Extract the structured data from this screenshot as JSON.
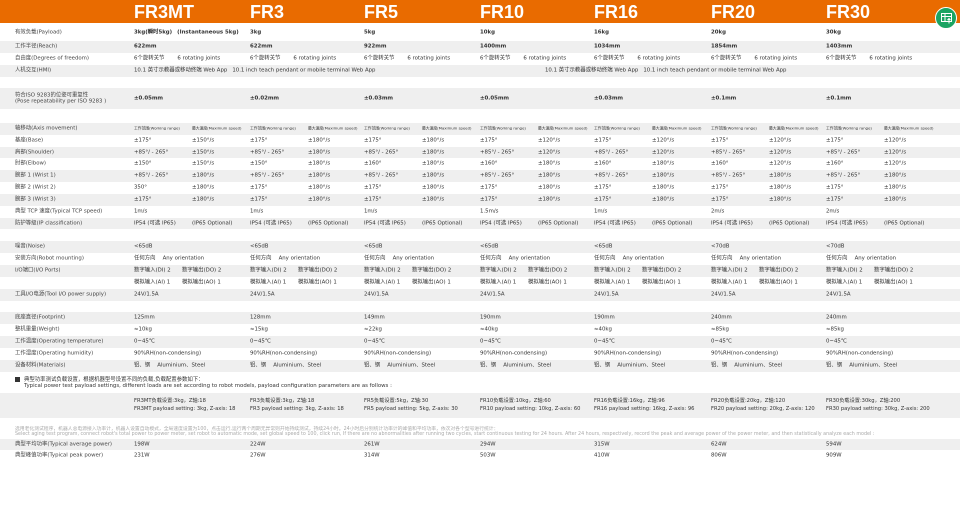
{
  "header": {
    "models": [
      "FR3MT",
      "FR3",
      "FR5",
      "FR10",
      "FR16",
      "FR20",
      "FR30"
    ],
    "brand_color": "#e96b00",
    "export_icon": "table-export-icon",
    "export_color": "#1ba463"
  },
  "rows": [
    {
      "id": "payload",
      "label": "有效负载(Payload)",
      "cells": [
        [
          "3kg(瞬时5kg)",
          "(Instantaneous 5kg)"
        ],
        [
          "3kg"
        ],
        [
          "5kg"
        ],
        [
          "10kg"
        ],
        [
          "16kg"
        ],
        [
          "20kg"
        ],
        [
          "30kg"
        ]
      ]
    },
    {
      "id": "reach",
      "label": "工作半径(Reach)",
      "cells": [
        [
          "622mm"
        ],
        [
          "622mm"
        ],
        [
          "922mm"
        ],
        [
          "1400mm"
        ],
        [
          "1034mm"
        ],
        [
          "1854mm"
        ],
        [
          "1403mm"
        ]
      ]
    },
    {
      "id": "dof",
      "label": "自由度(Degrees of freedom)",
      "cells": [
        [
          "6个旋转关节",
          "6 rotating joints"
        ],
        [
          "6个旋转关节",
          "6 rotating joints"
        ],
        [
          "6个旋转关节",
          "6 rotating joints"
        ],
        [
          "6个旋转关节",
          "6 rotating joints"
        ],
        [
          "6个旋转关节",
          "6 rotating joints"
        ],
        [
          "6个旋转关节",
          "6 rotating joints"
        ],
        [
          "6个旋转关节",
          "6 rotating joints"
        ]
      ]
    },
    {
      "id": "hmi",
      "label": "人机交互(HMI)",
      "cells": [
        [
          "10.1 英寸示教器或移动终端 Web App",
          "10.1 inch teach pendant or mobile terminal Web App"
        ],
        [
          "10.1 英寸示教器或移动终端 Web App",
          "10.1 inch teach pendant or mobile terminal Web App"
        ]
      ]
    },
    {
      "id": "blank1",
      "label": "",
      "cells": []
    },
    {
      "id": "iso",
      "label": "符合ISO 9283的位姿可重复性\n(Pose repeatability per ISO 9283 )",
      "cells": [
        [
          "±0.05mm"
        ],
        [
          "±0.02mm"
        ],
        [
          "±0.03mm"
        ],
        [
          "±0.05mm"
        ],
        [
          "±0.03mm"
        ],
        [
          "±0.1mm"
        ],
        [
          "±0.1mm"
        ]
      ]
    },
    {
      "id": "gap1",
      "label": "",
      "cells": []
    },
    {
      "id": "axis",
      "label": "轴移动(Axis movement)",
      "cells": [
        [
          "工作范围(Working range)",
          "最大速度(Maximum speed)"
        ],
        [
          "工作范围(Working range)",
          "最大速度(Maximum speed)"
        ],
        [
          "工作范围(Working range)",
          "最大速度(Maximum speed)"
        ],
        [
          "工作范围(Working range)",
          "最大速度(Maximum speed)"
        ],
        [
          "工作范围(Working range)",
          "最大速度(Maximum speed)"
        ],
        [
          "工作范围(Working range)",
          "最大速度(Maximum speed)"
        ],
        [
          "工作范围(Working range)",
          "最大速度(Maximum speed)"
        ]
      ]
    },
    {
      "id": "base",
      "label": "基座(Base)",
      "cells": [
        [
          "±175°",
          "±150°/s"
        ],
        [
          "±175°",
          "±180°/s"
        ],
        [
          "±175°",
          "±180°/s"
        ],
        [
          "±175°",
          "±120°/s"
        ],
        [
          "±175°",
          "±120°/s"
        ],
        [
          "±175°",
          "±120°/s"
        ],
        [
          "±175°",
          "±120°/s"
        ]
      ]
    },
    {
      "id": "shoulder",
      "label": "肩部(Shoulder)",
      "cells": [
        [
          "+85°/ - 265°",
          "±150°/s"
        ],
        [
          "+85°/ - 265°",
          "±180°/s"
        ],
        [
          "+85°/ - 265°",
          "±180°/s"
        ],
        [
          "+85°/ - 265°",
          "±120°/s"
        ],
        [
          "+85°/ - 265°",
          "±120°/s"
        ],
        [
          "+85°/ - 265°",
          "±120°/s"
        ],
        [
          "+85°/ - 265°",
          "±120°/s"
        ]
      ]
    },
    {
      "id": "elbow",
      "label": "肘部(Elbow)",
      "cells": [
        [
          "±150°",
          "±150°/s"
        ],
        [
          "±150°",
          "±180°/s"
        ],
        [
          "±160°",
          "±180°/s"
        ],
        [
          "±160°",
          "±180°/s"
        ],
        [
          "±160°",
          "±180°/s"
        ],
        [
          "±160°",
          "±120°/s"
        ],
        [
          "±160°",
          "±120°/s"
        ]
      ]
    },
    {
      "id": "wrist1",
      "label": "腕部 1 (Wrist 1)",
      "cells": [
        [
          "+85°/ - 265°",
          "±180°/s"
        ],
        [
          "+85°/ - 265°",
          "±180°/s"
        ],
        [
          "+85°/ - 265°",
          "±180°/s"
        ],
        [
          "+85°/ - 265°",
          "±180°/s"
        ],
        [
          "+85°/ - 265°",
          "±180°/s"
        ],
        [
          "+85°/ - 265°",
          "±180°/s"
        ],
        [
          "+85°/ - 265°",
          "±180°/s"
        ]
      ]
    },
    {
      "id": "wrist2",
      "label": "腕部 2 (Wrist 2)",
      "cells": [
        [
          "350°",
          "±180°/s"
        ],
        [
          "±175°",
          "±180°/s"
        ],
        [
          "±175°",
          "±180°/s"
        ],
        [
          "±175°",
          "±180°/s"
        ],
        [
          "±175°",
          "±180°/s"
        ],
        [
          "±175°",
          "±180°/s"
        ],
        [
          "±175°",
          "±180°/s"
        ]
      ]
    },
    {
      "id": "wrist3",
      "label": "腕部 3 (Wrist 3)",
      "cells": [
        [
          "±175°",
          "±180°/s"
        ],
        [
          "±175°",
          "±180°/s"
        ],
        [
          "±175°",
          "±180°/s"
        ],
        [
          "±175°",
          "±180°/s"
        ],
        [
          "±175°",
          "±180°/s"
        ],
        [
          "±175°",
          "±180°/s"
        ],
        [
          "±175°",
          "±180°/s"
        ]
      ]
    },
    {
      "id": "tcp",
      "label": "典型 TCP 速度(Typical TCP speed)",
      "cells": [
        [
          "1m/s"
        ],
        [
          "1m/s"
        ],
        [
          "1m/s"
        ],
        [
          "1.5m/s"
        ],
        [
          "1m/s"
        ],
        [
          "2m/s"
        ],
        [
          "2m/s"
        ]
      ]
    },
    {
      "id": "ip",
      "label": "防护等级(IP classification)",
      "cells": [
        [
          "IP54 (可选 IP65)",
          "(IP65 Optional)"
        ],
        [
          "IP54 (可选 IP65)",
          "(IP65 Optional)"
        ],
        [
          "IP54 (可选 IP65)",
          "(IP65 Optional)"
        ],
        [
          "IP54 (可选 IP65)",
          "(IP65 Optional)"
        ],
        [
          "IP54 (可选 IP65)",
          "(IP65 Optional)"
        ],
        [
          "IP54 (可选 IP65)",
          "(IP65 Optional)"
        ],
        [
          "IP54 (可选 IP65)",
          "(IP65 Optional)"
        ]
      ]
    },
    {
      "id": "gap2",
      "label": "",
      "cells": []
    },
    {
      "id": "noise",
      "label": "噪音(Noise)",
      "cells": [
        [
          "<65dB"
        ],
        [
          "<65dB"
        ],
        [
          "<65dB"
        ],
        [
          "<65dB"
        ],
        [
          "<65dB"
        ],
        [
          "<70dB"
        ],
        [
          "<70dB"
        ]
      ]
    },
    {
      "id": "mount",
      "label": "安装方向(Robot mounting)",
      "cells": [
        [
          "任何方向",
          "Any orientation"
        ],
        [
          "任何方向",
          "Any orientation"
        ],
        [
          "任何方向",
          "Any orientation"
        ],
        [
          "任何方向",
          "Any orientation"
        ],
        [
          "任何方向",
          "Any orientation"
        ],
        [
          "任何方向",
          "Any orientation"
        ],
        [
          "任何方向",
          "Any orientation"
        ]
      ]
    },
    {
      "id": "io1",
      "label": "I/O端口(I/O Ports)",
      "cells": [
        [
          "数字输入(DI) 2",
          "数字输出(DO) 2"
        ],
        [
          "数字输入(DI) 2",
          "数字输出(DO) 2"
        ],
        [
          "数字输入(DI) 2",
          "数字输出(DO) 2"
        ],
        [
          "数字输入(DI) 2",
          "数字输出(DO) 2"
        ],
        [
          "数字输入(DI) 2",
          "数字输出(DO) 2"
        ],
        [
          "数字输入(DI) 2",
          "数字输出(DO) 2"
        ],
        [
          "数字输入(DI) 2",
          "数字输出(DO) 2"
        ]
      ]
    },
    {
      "id": "io2",
      "label": "",
      "cells": [
        [
          "模拟输入(AI) 1",
          "模拟输出(AO) 1"
        ],
        [
          "模拟输入(AI) 1",
          "模拟输出(AO) 1"
        ],
        [
          "模拟输入(AI) 1",
          "模拟输出(AO) 1"
        ],
        [
          "模拟输入(AI) 1",
          "模拟输出(AO) 1"
        ],
        [
          "模拟输入(AI) 1",
          "模拟输出(AO) 1"
        ],
        [
          "模拟输入(AI) 1",
          "模拟输出(AO) 1"
        ],
        [
          "模拟输入(AI) 1",
          "模拟输出(AO) 1"
        ]
      ]
    },
    {
      "id": "toolio",
      "label": "工具I/O电源(Tool I/O power supply)",
      "cells": [
        [
          "24V/1.5A"
        ],
        [
          "24V/1.5A"
        ],
        [
          "24V/1.5A"
        ],
        [
          "24V/1.5A"
        ],
        [
          "24V/1.5A"
        ],
        [
          "24V/1.5A"
        ],
        [
          "24V/1.5A"
        ]
      ]
    },
    {
      "id": "blank2",
      "label": "",
      "cells": []
    },
    {
      "id": "footprint",
      "label": "底座直径(Footprint)",
      "cells": [
        [
          "125mm"
        ],
        [
          "128mm"
        ],
        [
          "149mm"
        ],
        [
          "190mm"
        ],
        [
          "190mm"
        ],
        [
          "240mm"
        ],
        [
          "240mm"
        ]
      ]
    },
    {
      "id": "weight",
      "label": "整机重量(Weight)",
      "cells": [
        [
          "≈10kg"
        ],
        [
          "≈15kg"
        ],
        [
          "≈22kg"
        ],
        [
          "≈40kg"
        ],
        [
          "≈40kg"
        ],
        [
          "≈85kg"
        ],
        [
          "≈85kg"
        ]
      ]
    },
    {
      "id": "temp",
      "label": "工作温度(Operating temperature)",
      "cells": [
        [
          "0~45℃"
        ],
        [
          "0~45℃"
        ],
        [
          "0~45℃"
        ],
        [
          "0~45℃"
        ],
        [
          "0~45℃"
        ],
        [
          "0~45℃"
        ],
        [
          "0~45℃"
        ]
      ]
    },
    {
      "id": "humidity",
      "label": "工作湿度(Operating humidity)",
      "cells": [
        [
          "90%RH(non-condensing)"
        ],
        [
          "90%RH(non-condensing)"
        ],
        [
          "90%RH(non-condensing)"
        ],
        [
          "90%RH(non-condensing)"
        ],
        [
          "90%RH(non-condensing)"
        ],
        [
          "90%RH(non-condensing)"
        ],
        [
          "90%RH(non-condensing)"
        ]
      ]
    },
    {
      "id": "materials",
      "label": "设备材料(Materials)",
      "cells": [
        [
          "铝、钢",
          "Aluminium、Steel"
        ],
        [
          "铝、钢",
          "Aluminium、Steel"
        ],
        [
          "铝、钢",
          "Aluminium、Steel"
        ],
        [
          "铝、钢",
          "Aluminium、Steel"
        ],
        [
          "铝、钢",
          "Aluminium、Steel"
        ],
        [
          "铝、钢",
          "Aluminium、Steel"
        ],
        [
          "铝、钢",
          "Aluminium、Steel"
        ]
      ]
    }
  ],
  "power_note": {
    "zh": "典型功率测试负载设置，根据机器型号设置不同的负载,负载配置参数如下：",
    "en": "Typical power test payload settings, different loads are set according to robot models, payload configuration parameters are as follows :"
  },
  "payload_settings": [
    {
      "zh": "FR3MT负载设置:3kg，Z轴:18",
      "en": "FR3MT payload setting: 3kg, Z-axis: 18"
    },
    {
      "zh": "FR3负载设置:3kg，Z轴:18",
      "en": "FR3 payload setting: 3kg, Z-axis: 18"
    },
    {
      "zh": "FR5负载设置:5kg，Z轴:30",
      "en": "FR5 payload setting: 5kg, Z-axis: 30"
    },
    {
      "zh": "FR10负载设置:10kg，Z轴:60",
      "en": "FR10 payload setting: 10kg, Z-axis: 60"
    },
    {
      "zh": "FR16负载设置:16kg，Z轴:96",
      "en": "FR16 payload setting: 16kg, Z-axis: 96"
    },
    {
      "zh": "FR20负载设置:20kg，Z轴:120",
      "en": "FR20 payload setting: 20kg, Z-axis: 120"
    },
    {
      "zh": "FR30负载设置:30kg，Z轴:200",
      "en": "FR30 payload setting: 30kg, Z-axis: 200"
    }
  ],
  "test_note": {
    "zh": "选用老化测试程序，机器人总电源接入功率计，机器人设置自动模式，全局速度设置为100，点击运行,运行两个周期无异常则开始持续测试，持续24小时。24小时后分别统计功率计的峰值和平均功率，依次对各个型号进行统计：",
    "en": "Select aging test program, connect robot's total power to power meter, set robot to automatic mode, set global speed to 100, click run, If there are no abnormalities after running two cycles, start continuous testing for 24 hours. After 24 hours, respectively, record the peak and average power of the power meter, and then statistically analyze each model :"
  },
  "power_rows": [
    {
      "id": "avg",
      "label": "典型平均功率(Typical average power)",
      "cells": [
        [
          "198W"
        ],
        [
          "224W"
        ],
        [
          "261W"
        ],
        [
          "294W"
        ],
        [
          "315W"
        ],
        [
          "624W"
        ],
        [
          "594W"
        ]
      ]
    },
    {
      "id": "peak",
      "label": "典型峰值功率(Typical peak power)",
      "cells": [
        [
          "231W"
        ],
        [
          "276W"
        ],
        [
          "314W"
        ],
        [
          "503W"
        ],
        [
          "410W"
        ],
        [
          "806W"
        ],
        [
          "909W"
        ]
      ]
    }
  ]
}
